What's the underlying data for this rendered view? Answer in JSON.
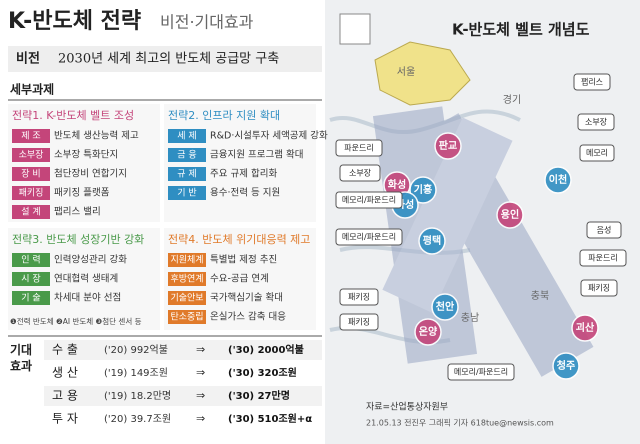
{
  "header": {
    "title": "K-반도체 전략",
    "subtitle": "비전·기대효과"
  },
  "vision": {
    "label": "비전",
    "text": "2030년 세계 최고의 반도체 공급망 구축"
  },
  "tasks": {
    "heading": "세부과제",
    "strategies": [
      {
        "title": "전략1. K-반도체 벨트 조성",
        "items": [
          [
            "제 조",
            "반도체 생산능력 제고"
          ],
          [
            "소부장",
            "소부장 특화단지"
          ],
          [
            "장 비",
            "첨단장비 연합기지"
          ],
          [
            "패키징",
            "패키징 플랫폼"
          ],
          [
            "설 계",
            "팹리스 밸리"
          ]
        ]
      },
      {
        "title": "전략2. 인프라 지원 확대",
        "items": [
          [
            "세 제",
            "R&D·시설투자 세액공제 강화"
          ],
          [
            "금 융",
            "금융지원 프로그램 확대"
          ],
          [
            "규 제",
            "주요 규제 합리화"
          ],
          [
            "기 반",
            "용수·전력 등 지원"
          ]
        ]
      },
      {
        "title": "전략3. 반도체 성장기반 강화",
        "items": [
          [
            "인 력",
            "인력양성관리 강화"
          ],
          [
            "시 장",
            "연대협력 생태계"
          ],
          [
            "기 술",
            "차세대 분야 선점"
          ]
        ]
      },
      {
        "title": "전략4. 반도체 위기대응력 제고",
        "items": [
          [
            "지원체계",
            "특별법 제정 추진"
          ],
          [
            "후방연계",
            "수요-공급 연계"
          ],
          [
            "기술안보",
            "국가핵심기술 확대"
          ],
          [
            "탄소중립",
            "온실가스 감축 대응"
          ]
        ]
      }
    ],
    "note": "❶전력 반도체 ❷AI 반도체 ❸첨단 센서 등"
  },
  "effects": {
    "label": "기대효과",
    "rows": [
      [
        "수 출",
        "('20) 992억불",
        "('30) 2000억불"
      ],
      [
        "생 산",
        "('19) 149조원",
        "('30) 320조원"
      ],
      [
        "고 용",
        "('19) 18.2만명",
        "('30) 27만명"
      ],
      [
        "투 자",
        "('20) 39.7조원",
        "('30) 510조원+α"
      ]
    ],
    "arrow": "⇒"
  },
  "map": {
    "title": "K-반도체 벨트 개념도",
    "regions": [
      "서울",
      "경기",
      "충북",
      "충남"
    ],
    "cities": [
      "판교",
      "화성",
      "기흥",
      "화성",
      "평택",
      "용인",
      "이천",
      "천안",
      "온양",
      "청주",
      "괴산"
    ],
    "tags": [
      "팹리스",
      "소부장",
      "메모리",
      "파운드리",
      "소부장",
      "메모리/파운드리",
      "메모리/파운드리",
      "음성",
      "파운드리",
      "패키징",
      "패키징",
      "패키징",
      "메모리/파운드리"
    ]
  },
  "footer": {
    "source": "자료=산업통상자원부",
    "credit": "21.05.13 전진우 그래픽 기자 618tue@newsis.com"
  }
}
